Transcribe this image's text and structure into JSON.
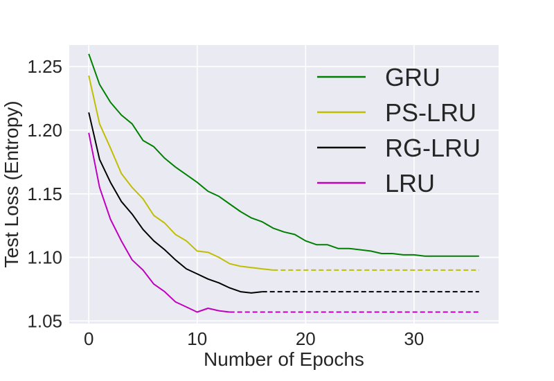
{
  "chart_data": {
    "type": "line",
    "title": "",
    "xlabel": "Number of Epochs",
    "ylabel": "Test Loss (Entropy)",
    "xlim": [
      -1.8,
      37.8
    ],
    "ylim": [
      1.048,
      1.267
    ],
    "xticks": [
      0,
      10,
      20,
      30
    ],
    "yticks": [
      1.05,
      1.1,
      1.15,
      1.2,
      1.25
    ],
    "xtick_labels": [
      "0",
      "10",
      "20",
      "30"
    ],
    "ytick_labels": [
      "1.05",
      "1.10",
      "1.15",
      "1.20",
      "1.25"
    ],
    "grid": true,
    "legend_position": "top-right",
    "series": [
      {
        "name": "GRU",
        "color": "#008000",
        "values": [
          1.26,
          1.236,
          1.222,
          1.212,
          1.205,
          1.192,
          1.187,
          1.178,
          1.171,
          1.165,
          1.159,
          1.152,
          1.148,
          1.142,
          1.136,
          1.131,
          1.128,
          1.123,
          1.12,
          1.118,
          1.113,
          1.11,
          1.11,
          1.107,
          1.107,
          1.106,
          1.105,
          1.103,
          1.103,
          1.102,
          1.102,
          1.101,
          1.101,
          1.101,
          1.101,
          1.101,
          1.101
        ],
        "dashed_from": null
      },
      {
        "name": "PS-LRU",
        "color": "#bfbf00",
        "values": [
          1.243,
          1.205,
          1.186,
          1.166,
          1.155,
          1.146,
          1.133,
          1.127,
          1.118,
          1.113,
          1.105,
          1.104,
          1.1,
          1.095,
          1.093,
          1.092,
          1.091,
          1.09,
          1.09,
          1.09,
          1.09,
          1.09,
          1.09,
          1.09,
          1.09,
          1.09,
          1.09,
          1.09,
          1.09,
          1.09,
          1.09,
          1.09,
          1.09,
          1.09,
          1.09,
          1.09,
          1.09
        ],
        "dashed_from": 17
      },
      {
        "name": "RG-LRU",
        "color": "#000000",
        "values": [
          1.214,
          1.177,
          1.159,
          1.144,
          1.134,
          1.122,
          1.113,
          1.106,
          1.098,
          1.091,
          1.087,
          1.083,
          1.08,
          1.076,
          1.073,
          1.072,
          1.073,
          1.073,
          1.073,
          1.073,
          1.073,
          1.073,
          1.073,
          1.073,
          1.073,
          1.073,
          1.073,
          1.073,
          1.073,
          1.073,
          1.073,
          1.073,
          1.073,
          1.073,
          1.073,
          1.073,
          1.073
        ],
        "dashed_from": 16
      },
      {
        "name": "LRU",
        "color": "#bf00bf",
        "values": [
          1.198,
          1.155,
          1.13,
          1.113,
          1.098,
          1.09,
          1.079,
          1.073,
          1.065,
          1.061,
          1.057,
          1.06,
          1.058,
          1.057,
          1.057,
          1.057,
          1.057,
          1.057,
          1.057,
          1.057,
          1.057,
          1.057,
          1.057,
          1.057,
          1.057,
          1.057,
          1.057,
          1.057,
          1.057,
          1.057,
          1.057,
          1.057,
          1.057,
          1.057,
          1.057,
          1.057,
          1.057
        ],
        "dashed_from": 13
      }
    ]
  }
}
